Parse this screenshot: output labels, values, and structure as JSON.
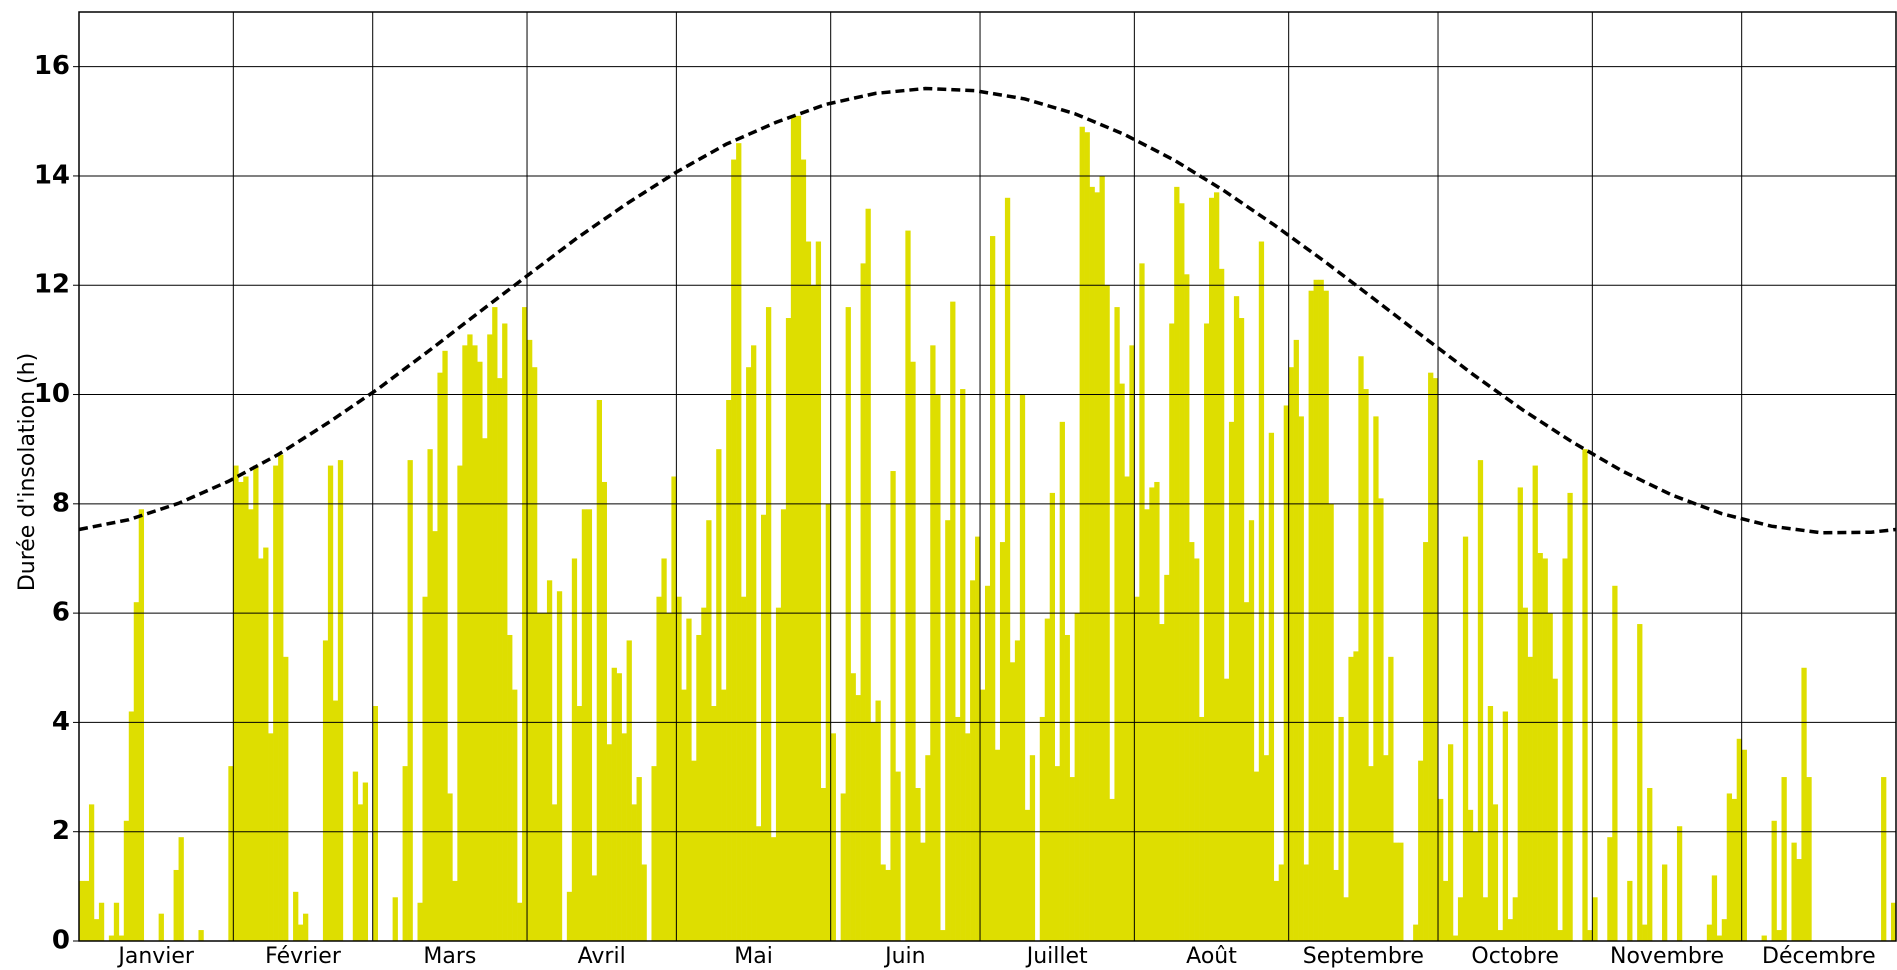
{
  "chart_data": {
    "type": "bar",
    "ylabel": "Durée d'insolation (h)",
    "categories": [
      "Janvier",
      "Février",
      "Mars",
      "Avril",
      "Mai",
      "Juin",
      "Juillet",
      "Août",
      "Septembre",
      "Octobre",
      "Novembre",
      "Décembre"
    ],
    "xlim": [
      0,
      365
    ],
    "xticks": [
      0,
      31,
      59,
      90,
      120,
      151,
      181,
      212,
      243,
      273,
      304,
      334,
      365
    ],
    "ylim": [
      0,
      17
    ],
    "yticks": [
      0,
      2,
      4,
      6,
      8,
      10,
      12,
      14,
      16
    ],
    "grid": true,
    "bars": {
      "color": "#dede00",
      "values": [
        1.1,
        1.1,
        2.5,
        0.4,
        0.7,
        0,
        0.1,
        0.7,
        0.1,
        2.2,
        4.2,
        6.2,
        7.9,
        0,
        0,
        0,
        0.5,
        0,
        0,
        1.3,
        1.9,
        0,
        0,
        0,
        0.2,
        0,
        0,
        0,
        0,
        0,
        3.2,
        8.7,
        8.4,
        8.5,
        7.9,
        8.7,
        7.0,
        7.2,
        3.8,
        8.7,
        8.9,
        5.2,
        0,
        0.9,
        0.3,
        0.5,
        0,
        0,
        0,
        5.5,
        8.7,
        4.4,
        8.8,
        0,
        0,
        3.1,
        2.5,
        2.9,
        0,
        4.3,
        0,
        0,
        0,
        0.8,
        0,
        3.2,
        8.8,
        0,
        0.7,
        6.3,
        9.0,
        7.5,
        10.4,
        10.8,
        2.7,
        1.1,
        8.7,
        10.9,
        11.1,
        10.9,
        10.6,
        9.2,
        11.1,
        11.6,
        10.3,
        11.3,
        5.6,
        4.6,
        0.7,
        11.6,
        11.0,
        10.5,
        6.0,
        6.0,
        6.6,
        2.5,
        6.4,
        0,
        0.9,
        7.0,
        4.3,
        7.9,
        7.9,
        1.2,
        9.9,
        8.4,
        3.6,
        5.0,
        4.9,
        3.8,
        5.5,
        2.5,
        3.0,
        1.4,
        0,
        3.2,
        6.3,
        7.0,
        6.0,
        8.5,
        6.3,
        4.6,
        5.9,
        3.3,
        5.6,
        6.1,
        7.7,
        4.3,
        9.0,
        4.6,
        9.9,
        14.3,
        14.6,
        6.3,
        10.5,
        10.9,
        2.1,
        7.8,
        11.6,
        1.9,
        6.1,
        7.9,
        11.4,
        15.1,
        15.1,
        14.3,
        12.8,
        12.0,
        12.8,
        2.8,
        8.0,
        3.8,
        0,
        2.7,
        11.6,
        4.9,
        4.5,
        12.4,
        13.4,
        4.0,
        4.4,
        1.4,
        1.3,
        8.6,
        3.1,
        0,
        13.0,
        10.6,
        2.8,
        1.8,
        3.4,
        10.9,
        10.0,
        0.2,
        7.7,
        11.7,
        4.1,
        10.1,
        3.8,
        6.6,
        7.4,
        4.6,
        6.5,
        12.9,
        3.5,
        7.3,
        13.6,
        5.1,
        5.5,
        10.0,
        2.4,
        3.4,
        0,
        4.1,
        5.9,
        8.2,
        3.2,
        9.5,
        5.6,
        3.0,
        6.0,
        14.9,
        14.8,
        13.8,
        13.7,
        14.0,
        12.0,
        2.6,
        11.6,
        10.2,
        8.5,
        10.9,
        6.3,
        12.4,
        7.9,
        8.3,
        8.4,
        5.8,
        6.7,
        11.3,
        13.8,
        13.5,
        12.2,
        7.3,
        7.0,
        4.1,
        11.3,
        13.6,
        13.7,
        12.3,
        4.8,
        9.5,
        11.8,
        11.4,
        6.2,
        7.7,
        3.1,
        12.8,
        3.4,
        9.3,
        1.1,
        1.4,
        9.8,
        10.5,
        11.0,
        9.6,
        1.4,
        11.9,
        12.1,
        12.1,
        11.9,
        8.0,
        1.3,
        4.1,
        0.8,
        5.2,
        5.3,
        10.7,
        10.1,
        3.2,
        9.6,
        8.1,
        3.4,
        5.2,
        1.8,
        1.8,
        0,
        0,
        0.3,
        3.3,
        7.3,
        10.4,
        10.3,
        2.6,
        1.1,
        3.6,
        0.1,
        0.8,
        7.4,
        2.4,
        2.0,
        8.8,
        0.8,
        4.3,
        2.5,
        0.2,
        4.2,
        0.4,
        0.8,
        8.3,
        6.1,
        5.2,
        8.7,
        7.1,
        7.0,
        6.0,
        4.8,
        0.2,
        7.0,
        8.2,
        0,
        0,
        9.0,
        0.2,
        0.8,
        0,
        0,
        1.9,
        6.5,
        0,
        0,
        1.1,
        0,
        5.8,
        0.3,
        2.8,
        0,
        0,
        1.4,
        0,
        0,
        2.1,
        0,
        0,
        0,
        0,
        0,
        0.3,
        1.2,
        0.1,
        0.4,
        2.7,
        2.6,
        3.7,
        3.5,
        0,
        0,
        0,
        0.1,
        0,
        2.2,
        0.2,
        3.0,
        0,
        1.8,
        1.5,
        5.0,
        3.0,
        0,
        0,
        0,
        0,
        0,
        0,
        0,
        0,
        0,
        0,
        0,
        0,
        0,
        0,
        3.0,
        0,
        0.7
      ]
    },
    "daylength": {
      "color": "#000000",
      "x": [
        0,
        10,
        20,
        30,
        40,
        50,
        60,
        70,
        80,
        90,
        100,
        110,
        120,
        130,
        140,
        150,
        160,
        170,
        180,
        190,
        200,
        210,
        220,
        230,
        240,
        250,
        260,
        270,
        280,
        290,
        300,
        310,
        320,
        330,
        340,
        350,
        360,
        365
      ],
      "values": [
        7.53,
        7.71,
        8.01,
        8.41,
        8.9,
        9.48,
        10.1,
        10.78,
        11.48,
        12.17,
        12.86,
        13.49,
        14.07,
        14.58,
        14.98,
        15.31,
        15.51,
        15.6,
        15.56,
        15.41,
        15.14,
        14.76,
        14.29,
        13.73,
        13.11,
        12.45,
        11.76,
        11.06,
        10.37,
        9.72,
        9.13,
        8.6,
        8.16,
        7.82,
        7.59,
        7.47,
        7.48,
        7.53
      ]
    }
  }
}
